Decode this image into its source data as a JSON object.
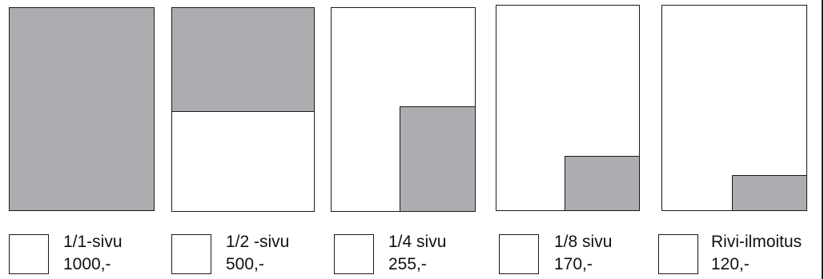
{
  "options": [
    {
      "name": "1/1-sivu",
      "price": "1000,-",
      "fill_fraction": 1.0
    },
    {
      "name": "1/2 -sivu",
      "price": "500,-",
      "fill_fraction": 0.5
    },
    {
      "name": "1/4 sivu",
      "price": "255,-",
      "fill_fraction": 0.25
    },
    {
      "name": "1/8 sivu",
      "price": "170,-",
      "fill_fraction": 0.125
    },
    {
      "name": "Rivi-ilmoitus",
      "price": "120,-"
    }
  ],
  "colors": {
    "fill": "#acadb0",
    "stroke": "#1a1a1a"
  }
}
